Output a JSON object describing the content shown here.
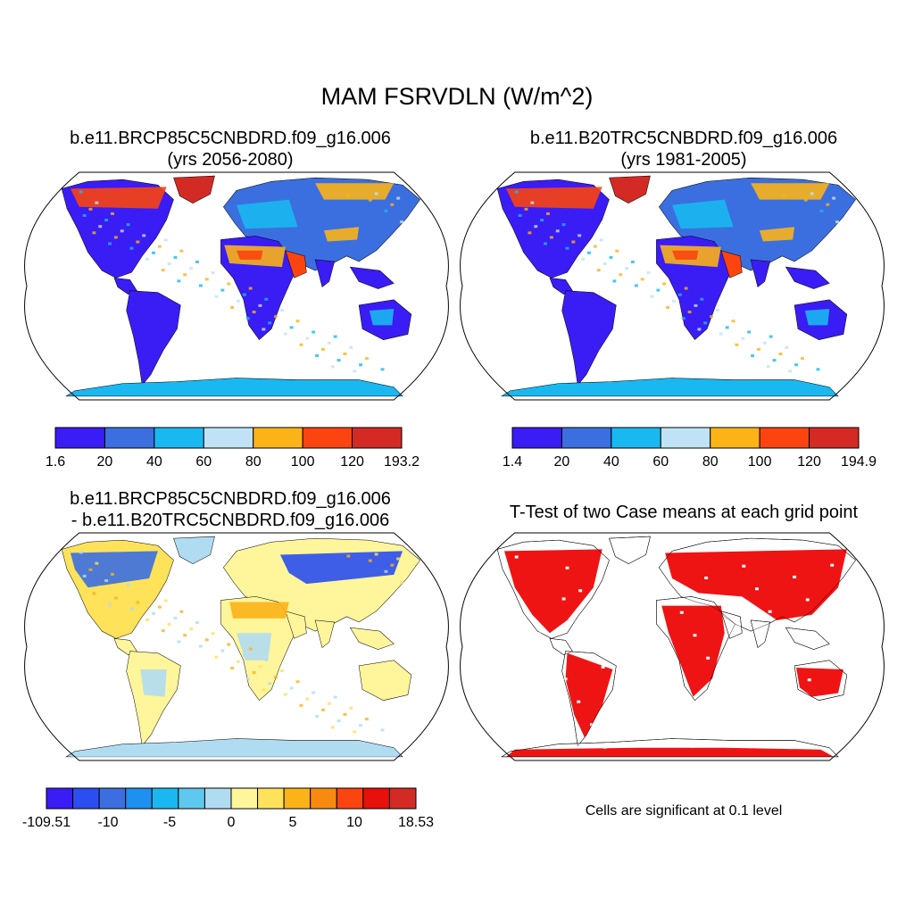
{
  "title": "MAM FSRVDLN (W/m^2)",
  "panels": {
    "top_left": {
      "title_line1": "b.e11.BRCP85C5CNBDRD.f09_g16.006",
      "title_line2": "(yrs 2056-2080)",
      "colorbar": {
        "colors": [
          "#3a1cf5",
          "#3b6fe0",
          "#1ab8f0",
          "#bfe3f5",
          "#fbb318",
          "#fb4410",
          "#d42a24"
        ],
        "labels": [
          "1.6",
          "20",
          "40",
          "60",
          "80",
          "100",
          "120",
          "193.2"
        ]
      }
    },
    "top_right": {
      "title_line1": "b.e11.B20TRC5CNBDRD.f09_g16.006",
      "title_line2": "(yrs 1981-2005)",
      "colorbar": {
        "colors": [
          "#3a1cf5",
          "#3b6fe0",
          "#1ab8f0",
          "#bfe3f5",
          "#fbb318",
          "#fb4410",
          "#d42a24"
        ],
        "labels": [
          "1.4",
          "20",
          "40",
          "60",
          "80",
          "100",
          "120",
          "194.9"
        ]
      }
    },
    "bottom_left": {
      "title_line1": "b.e11.BRCP85C5CNBDRD.f09_g16.006",
      "title_line2": "- b.e11.B20TRC5CNBDRD.f09_g16.006",
      "colorbar": {
        "colors": [
          "#3a1cf5",
          "#2a4ef0",
          "#3b6fe0",
          "#1e90f0",
          "#1ab8f0",
          "#5ec8ef",
          "#b0dcf2",
          "#fff59a",
          "#fde25a",
          "#fbb318",
          "#f88a10",
          "#fb4410",
          "#e8100a",
          "#d42a24"
        ],
        "labels": [
          "-109.51",
          "-10",
          "-5",
          "0",
          "5",
          "10",
          "18.53"
        ]
      }
    },
    "bottom_right": {
      "title": "T-Test of two Case means at each grid point",
      "note": "Cells are significant at 0.1 level",
      "sig_color": "#ee0000"
    }
  }
}
